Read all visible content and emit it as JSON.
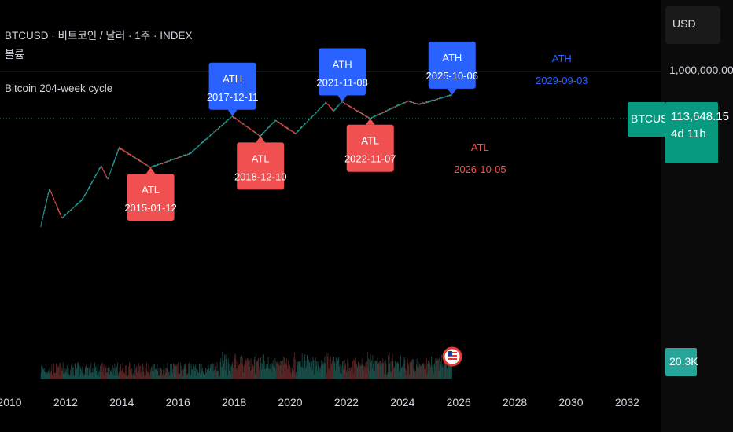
{
  "header": {
    "symbol_line": "BTCUSD · 비트코인 / 달러 · 1주 · INDEX",
    "volume_label": "볼륨",
    "indicator_label": "Bitcoin 204-week cycle"
  },
  "price_axis": {
    "currency": "USD",
    "tick_label": "1,000,000.00",
    "symbol_tag": "BTCUSD",
    "price": "113,648.15",
    "countdown": "4d 11h",
    "volume_value": "20.3K"
  },
  "colors": {
    "ath": "#2962ff",
    "atl": "#f15050",
    "up": "#26a69a",
    "down": "#ef5350",
    "price_tag": "#089981"
  },
  "chart_data": {
    "type": "candlestick",
    "symbol": "BTCUSD",
    "interval": "1주",
    "y_scale": "log",
    "x_tick_labels": [
      "2010",
      "2012",
      "2014",
      "2016",
      "2018",
      "2020",
      "2022",
      "2024",
      "2026",
      "2028",
      "2030",
      "2032"
    ],
    "y_tick_labels": [
      "1,000,000.00"
    ],
    "last_price": 113648.15,
    "last_volume": "20.3K",
    "price_path": [
      {
        "date": "2011-02-15",
        "price": 1
      },
      {
        "date": "2011-06-08",
        "price": 30
      },
      {
        "date": "2011-11-18",
        "price": 2.2
      },
      {
        "date": "2012-08-15",
        "price": 12
      },
      {
        "date": "2013-04-10",
        "price": 230
      },
      {
        "date": "2013-07-05",
        "price": 70
      },
      {
        "date": "2013-12-02",
        "price": 1150
      },
      {
        "date": "2015-01-12",
        "price": 200
      },
      {
        "date": "2016-06-15",
        "price": 700
      },
      {
        "date": "2017-12-11",
        "price": 19000
      },
      {
        "date": "2018-12-10",
        "price": 3200
      },
      {
        "date": "2019-06-26",
        "price": 13000
      },
      {
        "date": "2020-03-13",
        "price": 4000
      },
      {
        "date": "2021-04-14",
        "price": 64000
      },
      {
        "date": "2021-07-20",
        "price": 30000
      },
      {
        "date": "2021-11-08",
        "price": 68000
      },
      {
        "date": "2022-11-07",
        "price": 15500
      },
      {
        "date": "2024-03-14",
        "price": 73000
      },
      {
        "date": "2024-08-05",
        "price": 54000
      },
      {
        "date": "2025-10-06",
        "price": 124000
      }
    ],
    "cycle_labels": [
      {
        "type": "ATL",
        "date": "2015-01-12",
        "projected": false
      },
      {
        "type": "ATH",
        "date": "2017-12-11",
        "projected": false
      },
      {
        "type": "ATL",
        "date": "2018-12-10",
        "projected": false
      },
      {
        "type": "ATH",
        "date": "2021-11-08",
        "projected": false
      },
      {
        "type": "ATL",
        "date": "2022-11-07",
        "projected": false
      },
      {
        "type": "ATH",
        "date": "2025-10-06",
        "projected": false
      },
      {
        "type": "ATL",
        "date": "2026-10-05",
        "projected": true
      },
      {
        "type": "ATH",
        "date": "2029-09-03",
        "projected": true
      }
    ]
  }
}
